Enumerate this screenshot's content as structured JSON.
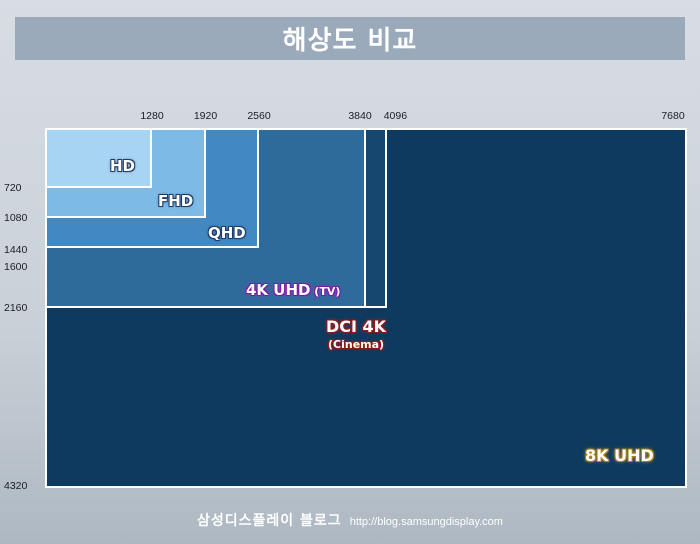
{
  "title": "해상도 비교",
  "footer": {
    "brand": "삼성디스플레이 블로그",
    "url": "http://blog.samsungdisplay.com"
  },
  "chart_data": {
    "type": "diagram",
    "x_ticks": [
      1280,
      1920,
      2560,
      3840,
      4096,
      7680
    ],
    "y_ticks": [
      720,
      1080,
      1440,
      1600,
      2160,
      4320
    ],
    "resolutions": [
      {
        "name": "8K UHD",
        "width": 7680,
        "height": 4320,
        "color": "#0d3a5e"
      },
      {
        "name": "DCI 4K",
        "sub": "(Cinema)",
        "width": 4096,
        "height": 2160,
        "color": "#15476f"
      },
      {
        "name": "4K UHD",
        "sub": "(TV)",
        "width": 3840,
        "height": 2160,
        "color": "#2e6b9a"
      },
      {
        "name": "QHD",
        "width": 2560,
        "height": 1440,
        "color": "#4289c2"
      },
      {
        "name": "FHD",
        "width": 1920,
        "height": 1080,
        "color": "#7dbbe6"
      },
      {
        "name": "HD",
        "width": 1280,
        "height": 720,
        "color": "#a7d4f3"
      }
    ]
  }
}
